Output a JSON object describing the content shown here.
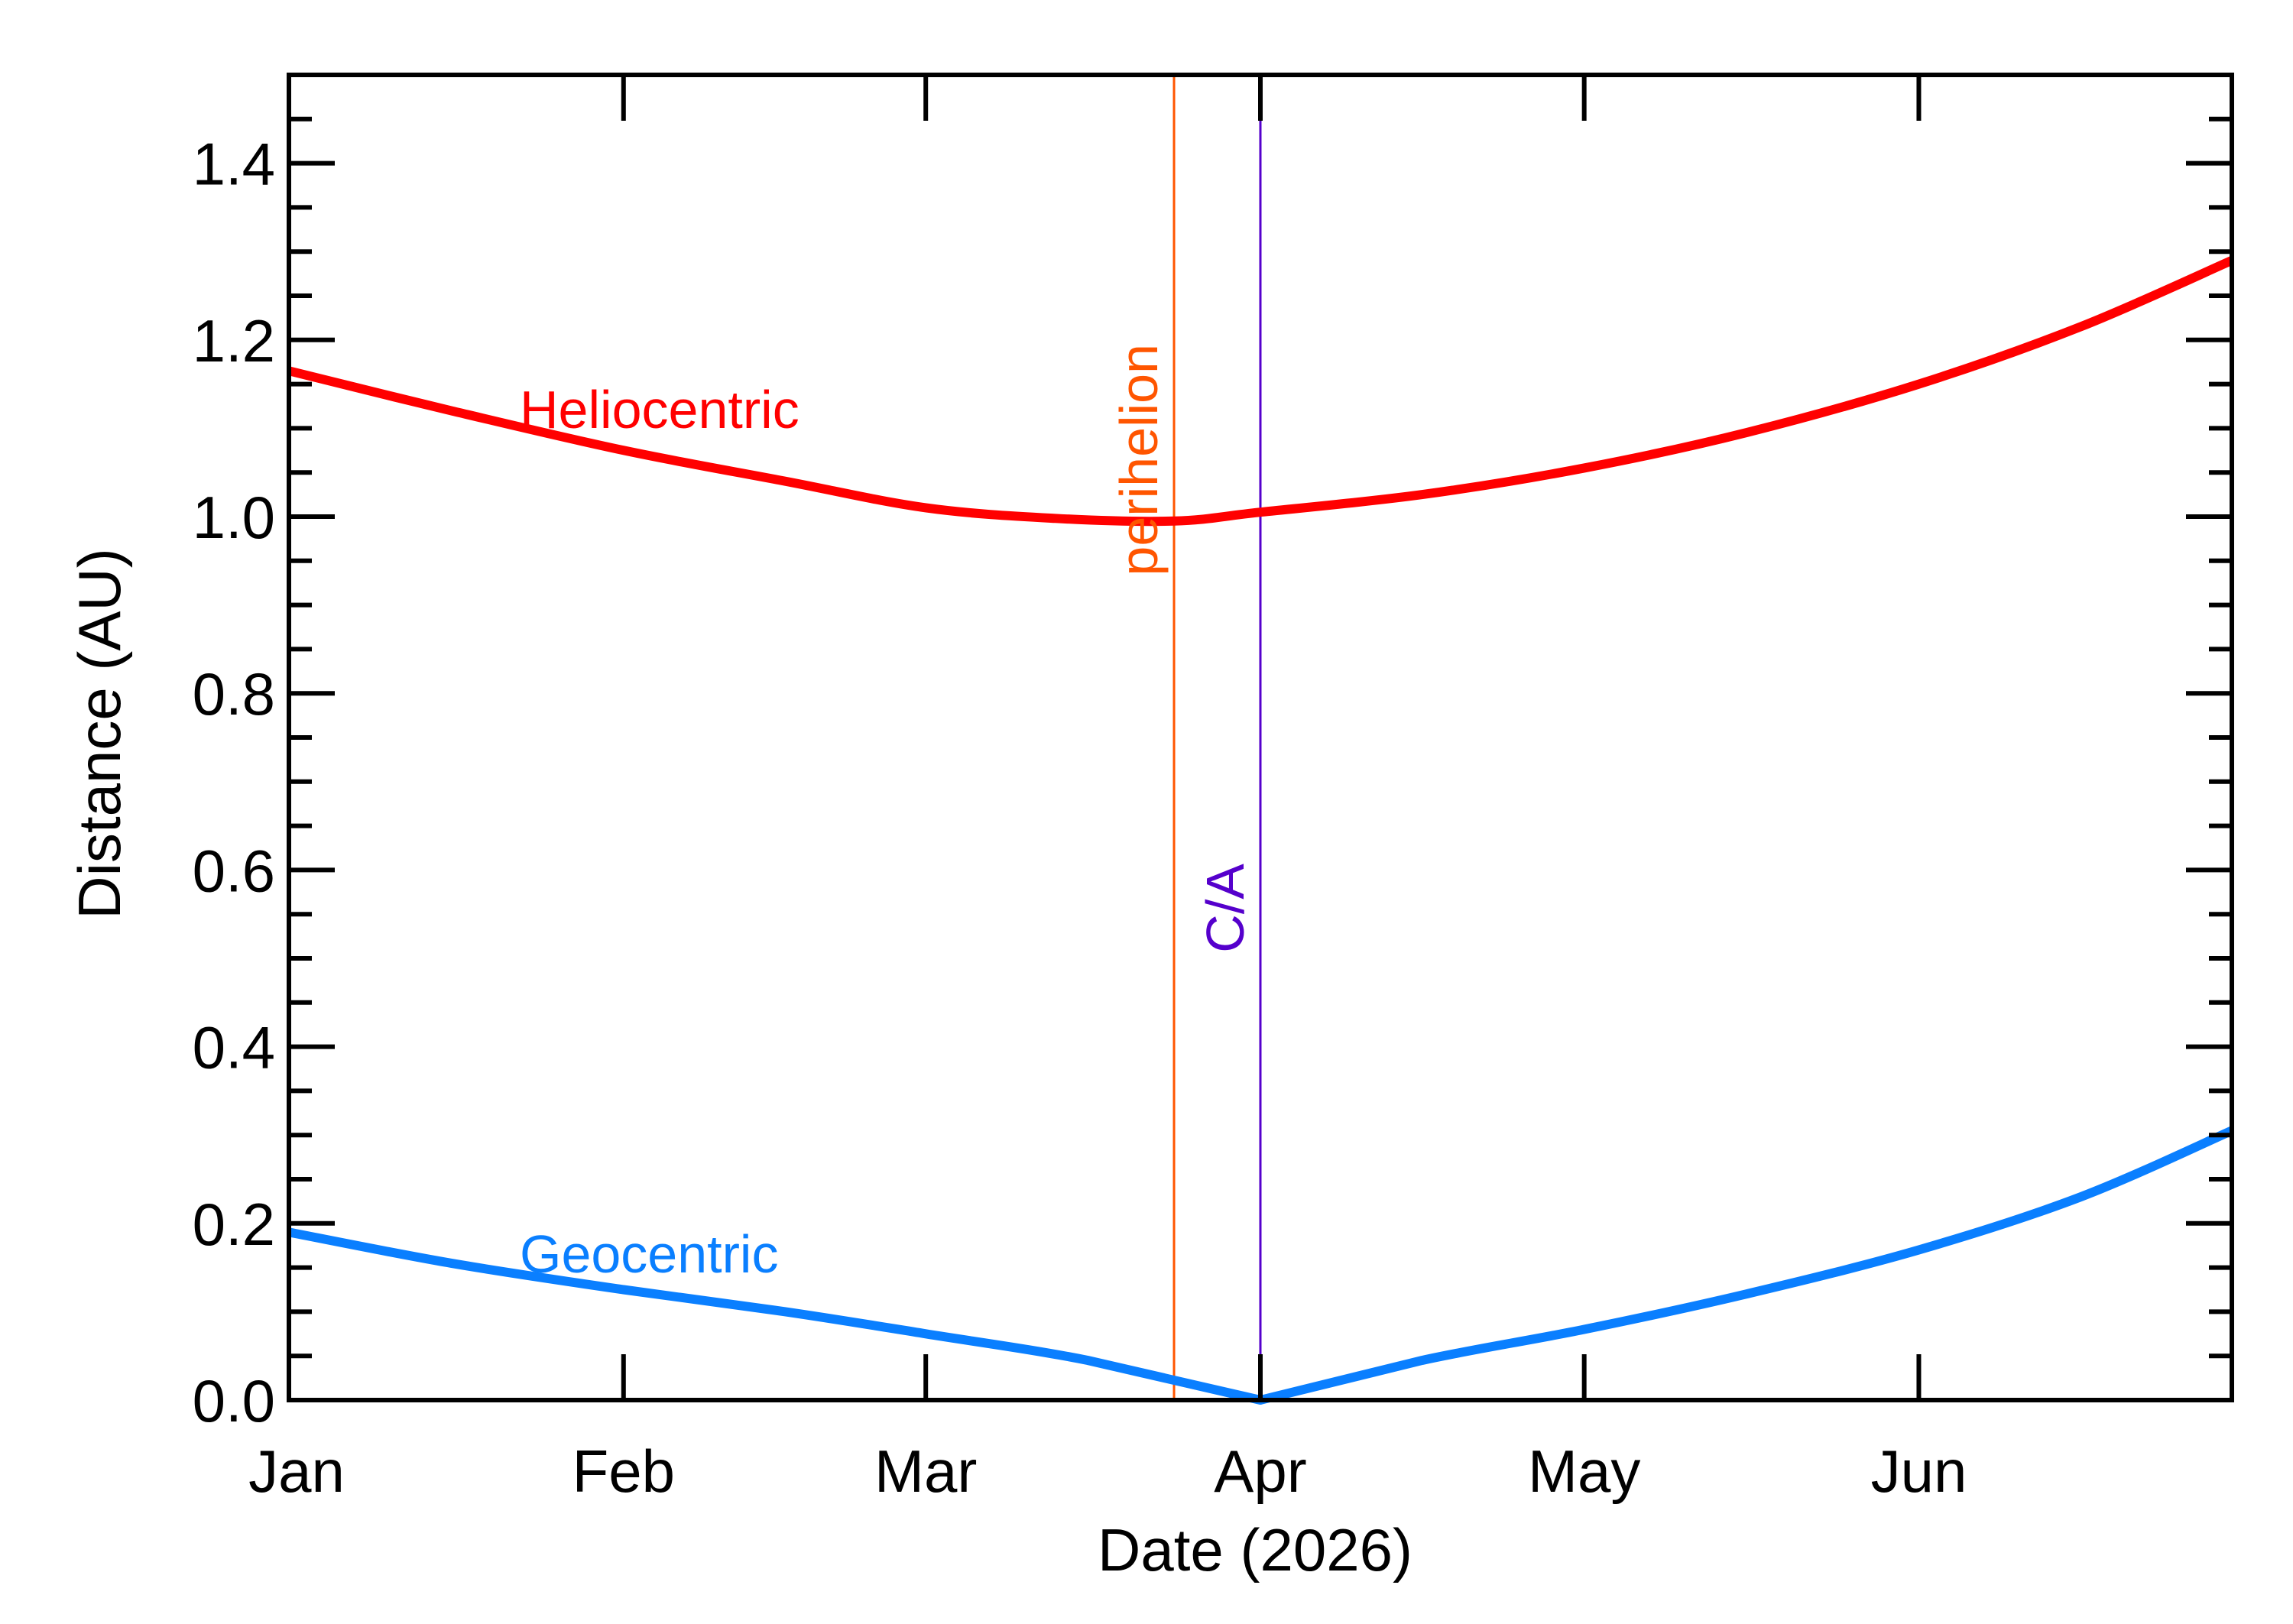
{
  "chart_data": {
    "type": "line",
    "xlabel": "Date (2026)",
    "ylabel": "Distance (AU)",
    "x_range": [
      "2026-01-01",
      "2026-06-30"
    ],
    "ylim": [
      0,
      1.5
    ],
    "x_ticks": [
      {
        "date": "2026-01-01",
        "label": "Jan"
      },
      {
        "date": "2026-02-01",
        "label": "Feb"
      },
      {
        "date": "2026-03-01",
        "label": "Mar"
      },
      {
        "date": "2026-04-01",
        "label": "Apr"
      },
      {
        "date": "2026-05-01",
        "label": "May"
      },
      {
        "date": "2026-06-01",
        "label": "Jun"
      }
    ],
    "y_ticks": [
      "0.0",
      "0.2",
      "0.4",
      "0.6",
      "0.8",
      "1.0",
      "1.2",
      "1.4"
    ],
    "y_minor_step": 0.05,
    "grid": false,
    "series": [
      {
        "name": "Heliocentric",
        "color": "#ff0000",
        "points": [
          {
            "x": "2026-01-01",
            "y": 1.165
          },
          {
            "x": "2026-01-16",
            "y": 1.12
          },
          {
            "x": "2026-02-01",
            "y": 1.075
          },
          {
            "x": "2026-02-16",
            "y": 1.04
          },
          {
            "x": "2026-03-01",
            "y": 1.01
          },
          {
            "x": "2026-03-13",
            "y": 0.998
          },
          {
            "x": "2026-03-24",
            "y": 0.995
          },
          {
            "x": "2026-04-01",
            "y": 1.005
          },
          {
            "x": "2026-04-16",
            "y": 1.025
          },
          {
            "x": "2026-05-01",
            "y": 1.055
          },
          {
            "x": "2026-05-16",
            "y": 1.095
          },
          {
            "x": "2026-06-01",
            "y": 1.15
          },
          {
            "x": "2026-06-16",
            "y": 1.215
          },
          {
            "x": "2026-06-30",
            "y": 1.29
          }
        ]
      },
      {
        "name": "Geocentric",
        "color": "#0a7fff",
        "points": [
          {
            "x": "2026-01-01",
            "y": 0.19
          },
          {
            "x": "2026-01-16",
            "y": 0.155
          },
          {
            "x": "2026-02-01",
            "y": 0.125
          },
          {
            "x": "2026-02-16",
            "y": 0.1
          },
          {
            "x": "2026-03-01",
            "y": 0.075
          },
          {
            "x": "2026-03-16",
            "y": 0.045
          },
          {
            "x": "2026-04-01",
            "y": 0.0
          },
          {
            "x": "2026-04-16",
            "y": 0.045
          },
          {
            "x": "2026-05-01",
            "y": 0.08
          },
          {
            "x": "2026-05-16",
            "y": 0.12
          },
          {
            "x": "2026-06-01",
            "y": 0.17
          },
          {
            "x": "2026-06-16",
            "y": 0.23
          },
          {
            "x": "2026-06-30",
            "y": 0.305
          }
        ]
      }
    ],
    "markers": [
      {
        "label": "perihelion",
        "date": "2026-03-24",
        "color": "#ff5500"
      },
      {
        "label": "C/A",
        "date": "2026-04-01",
        "color": "#5500cc"
      }
    ]
  }
}
